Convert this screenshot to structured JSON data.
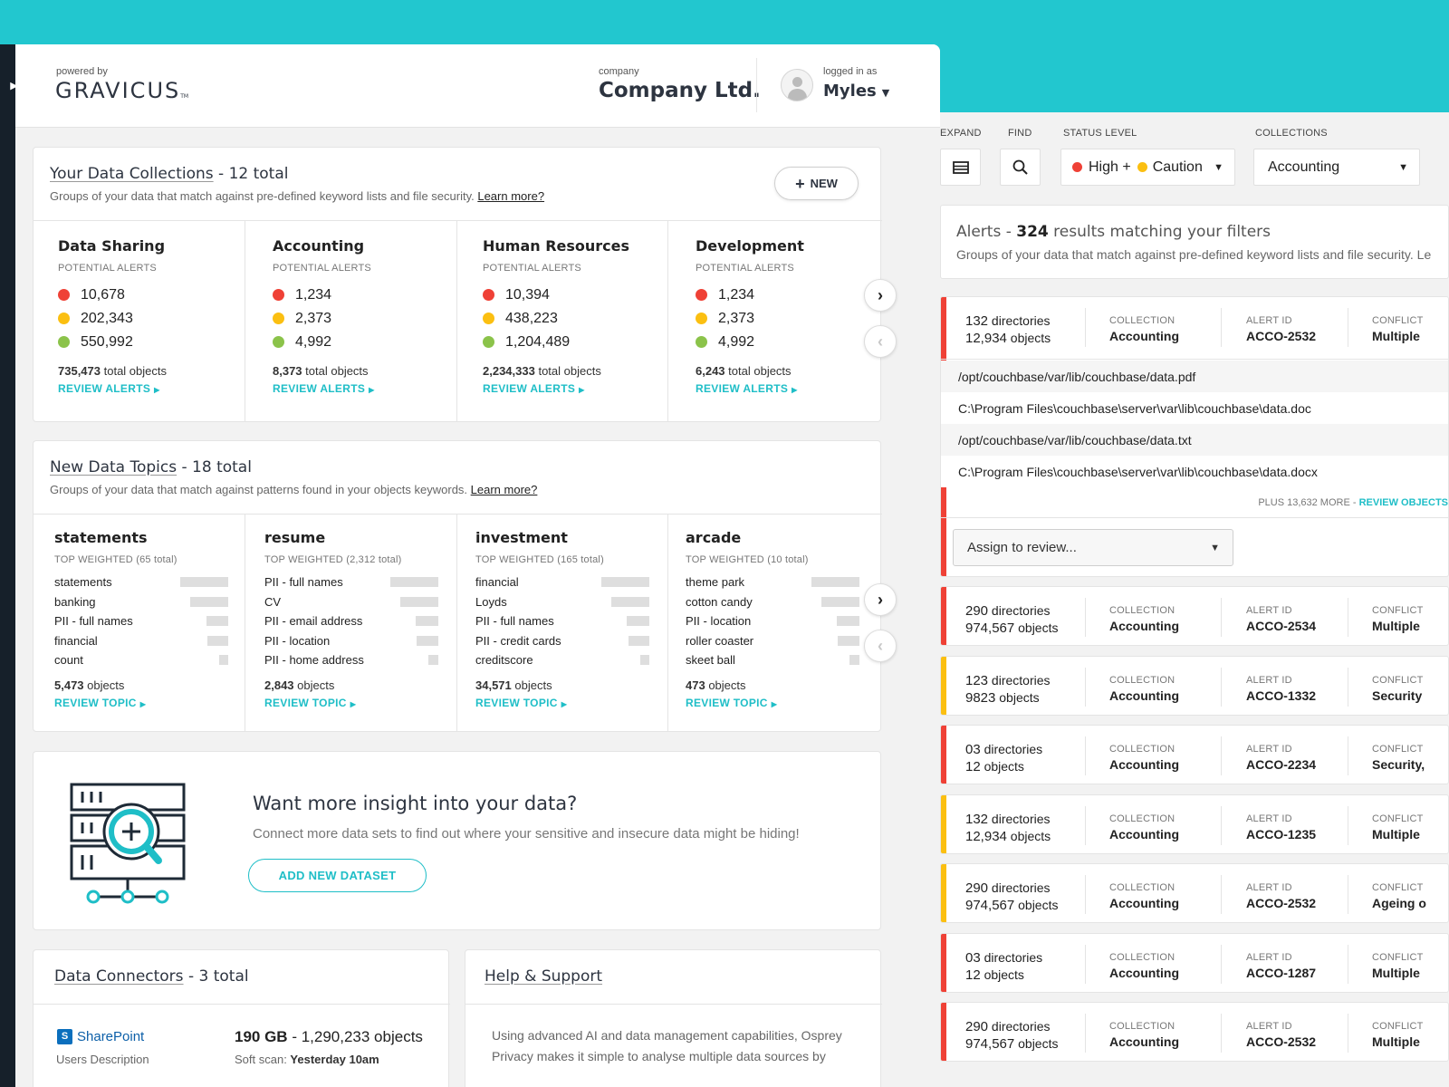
{
  "header": {
    "powered_by": "powered by",
    "logo_text": "GRAVICUS",
    "logo_tm": "TM",
    "company_label": "company",
    "company_name": "Company Ltd.",
    "logged_in_label": "logged in as",
    "user_name": "Myles"
  },
  "collections": {
    "title_link": "Your Data Collections",
    "title_suffix": " - 12 total",
    "subtitle": "Groups of your data that match against pre-defined keyword lists and file security.",
    "learn_more": "Learn more?",
    "new_button": "NEW",
    "potential_alerts_label": "POTENTIAL ALERTS",
    "review_label": "REVIEW ALERTS",
    "total_objects_suffix": "total objects",
    "items": [
      {
        "name": "Data Sharing",
        "high": "10,678",
        "medium": "202,343",
        "low": "550,992",
        "total": "735,473"
      },
      {
        "name": "Accounting",
        "high": "1,234",
        "medium": "2,373",
        "low": "4,992",
        "total": "8,373"
      },
      {
        "name": "Human Resources",
        "high": "10,394",
        "medium": "438,223",
        "low": "1,204,489",
        "total": "2,234,333"
      },
      {
        "name": "Development",
        "high": "1,234",
        "medium": "2,373",
        "low": "4,992",
        "total": "6,243"
      }
    ]
  },
  "topics": {
    "title_link": "New Data Topics",
    "title_suffix": " - 18 total",
    "subtitle": "Groups of your data that match against patterns found in your objects keywords.",
    "learn_more": "Learn more?",
    "review_label": "REVIEW TOPIC",
    "objects_suffix": "objects",
    "items": [
      {
        "name": "statements",
        "weighted": "TOP WEIGHTED (65 total)",
        "objects": "5,473",
        "keywords": [
          {
            "label": "statements",
            "weight": 1.0
          },
          {
            "label": "banking",
            "weight": 0.79
          },
          {
            "label": "PII - full names",
            "weight": 0.45
          },
          {
            "label": "financial",
            "weight": 0.43
          },
          {
            "label": "count",
            "weight": 0.19
          }
        ]
      },
      {
        "name": "resume",
        "weighted": "TOP WEIGHTED (2,312 total)",
        "objects": "2,843",
        "keywords": [
          {
            "label": "PII - full names",
            "weight": 1.0
          },
          {
            "label": "CV",
            "weight": 0.79
          },
          {
            "label": "PII - email address",
            "weight": 0.47
          },
          {
            "label": "PII - location",
            "weight": 0.45
          },
          {
            "label": "PII - home address",
            "weight": 0.21
          }
        ]
      },
      {
        "name": "investment",
        "weighted": "TOP WEIGHTED (165 total)",
        "objects": "34,571",
        "keywords": [
          {
            "label": "financial",
            "weight": 1.0
          },
          {
            "label": "Loyds",
            "weight": 0.79
          },
          {
            "label": "PII - full names",
            "weight": 0.47
          },
          {
            "label": "PII - credit cards",
            "weight": 0.43
          },
          {
            "label": "creditscore",
            "weight": 0.19
          }
        ]
      },
      {
        "name": "arcade",
        "weighted": "TOP WEIGHTED (10 total)",
        "objects": "473",
        "keywords": [
          {
            "label": "theme park",
            "weight": 1.0
          },
          {
            "label": "cotton candy",
            "weight": 0.79
          },
          {
            "label": "PII - location",
            "weight": 0.47
          },
          {
            "label": "roller coaster",
            "weight": 0.45
          },
          {
            "label": "skeet ball",
            "weight": 0.21
          }
        ]
      }
    ]
  },
  "promo": {
    "title": "Want more insight into your data?",
    "subtitle": "Connect more data sets to find out where your sensitive and insecure data might be hiding!",
    "button": "ADD NEW DATASET"
  },
  "connectors": {
    "title_link": "Data Connectors",
    "title_suffix": " - 3 total",
    "brand": "SharePoint",
    "desc": "Users Description",
    "size": "190 GB",
    "objects_text": " - 1,290,233 objects",
    "scan_label": "Soft scan: ",
    "scan_value": "Yesterday 10am"
  },
  "help": {
    "title_link": "Help & Support",
    "body": "Using advanced AI and data management capabilities, Osprey Privacy makes it simple to analyse multiple data sources by"
  },
  "filters": {
    "expand_label": "EXPAND",
    "find_label": "FIND",
    "status_label": "STATUS LEVEL",
    "status_high": "High +",
    "status_caution": "Caution",
    "collections_label": "COLLECTIONS",
    "collections_value": "Accounting"
  },
  "alerts": {
    "title_prefix": "Alerts - ",
    "count": "324",
    "title_suffix": " results matching your filters",
    "subtitle": "Groups of your data that match against pre-defined keyword lists and file security. Le",
    "col_collection": "COLLECTION",
    "col_alert_id": "ALERT ID",
    "col_conflict": "CONFLICT",
    "dirs_word": "directories",
    "objects_word": "objects",
    "expanded": {
      "severity": "high",
      "dirs": "132",
      "objects": "12,934",
      "collection": "Accounting",
      "id": "ACCO-2532",
      "conflict": "Multiple",
      "paths": [
        "/opt/couchbase/var/lib/couchbase/data.pdf",
        "C:\\Program Files\\couchbase\\server\\var\\lib\\couchbase\\data.doc",
        "/opt/couchbase/var/lib/couchbase/data.txt",
        "C:\\Program Files\\couchbase\\server\\var\\lib\\couchbase\\data.docx"
      ],
      "plus_more": "PLUS 13,632 MORE",
      "review_objects": "REVIEW OBJECTS",
      "assign_placeholder": "Assign to review..."
    },
    "rows": [
      {
        "severity": "high",
        "dirs": "290",
        "objects": "974,567",
        "collection": "Accounting",
        "id": "ACCO-2534",
        "conflict": "Multiple"
      },
      {
        "severity": "medium",
        "dirs": "123",
        "objects": "9823",
        "collection": "Accounting",
        "id": "ACCO-1332",
        "conflict": "Security"
      },
      {
        "severity": "high",
        "dirs": "03",
        "objects": "12",
        "collection": "Accounting",
        "id": "ACCO-2234",
        "conflict": "Security,"
      },
      {
        "severity": "medium",
        "dirs": "132",
        "objects": "12,934",
        "collection": "Accounting",
        "id": "ACCO-1235",
        "conflict": "Multiple"
      },
      {
        "severity": "medium",
        "dirs": "290",
        "objects": "974,567",
        "collection": "Accounting",
        "id": "ACCO-2532",
        "conflict": "Ageing o"
      },
      {
        "severity": "high",
        "dirs": "03",
        "objects": "12",
        "collection": "Accounting",
        "id": "ACCO-1287",
        "conflict": "Multiple"
      },
      {
        "severity": "high",
        "dirs": "290",
        "objects": "974,567",
        "collection": "Accounting",
        "id": "ACCO-2532",
        "conflict": "Multiple"
      }
    ]
  },
  "colors": {
    "accent": "#1fbec7",
    "high": "#ef4136",
    "medium": "#fbbf11",
    "low": "#8bc34a",
    "background": "#22c7cf"
  }
}
